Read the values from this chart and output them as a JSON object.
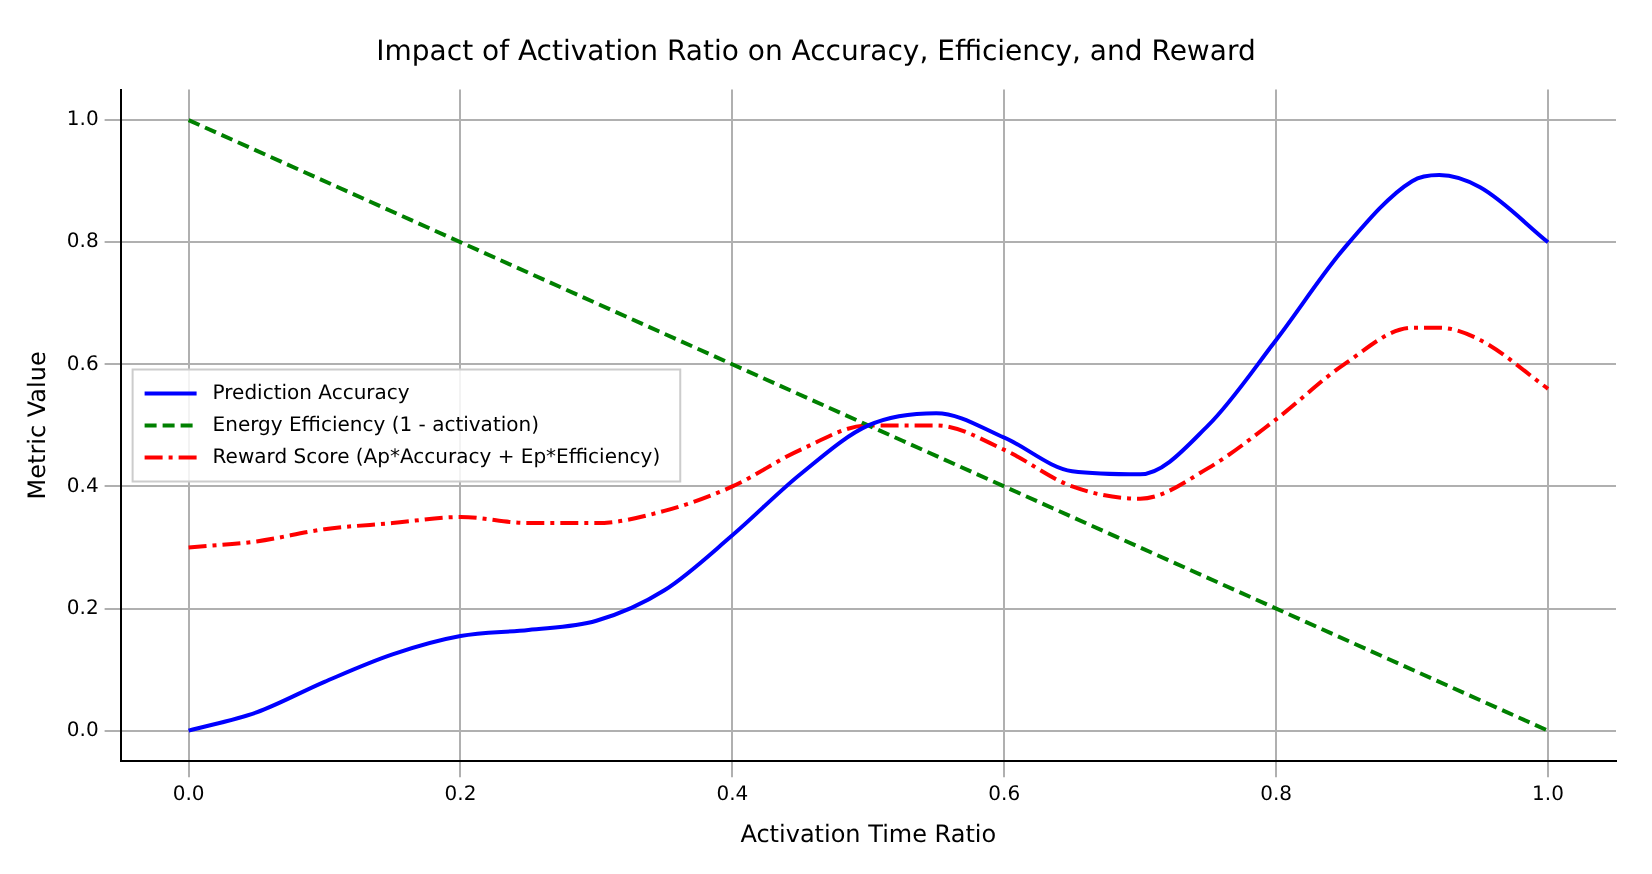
{
  "chart_data": {
    "type": "line",
    "title": "Impact of Activation Ratio on Accuracy, Efficiency, and Reward",
    "xlabel": "Activation Time Ratio",
    "ylabel": "Metric Value",
    "xlim": [
      -0.05,
      1.05
    ],
    "ylim": [
      -0.05,
      1.05
    ],
    "xticks": [
      {
        "value": 0,
        "label": "0.0"
      },
      0.2,
      0.4,
      0.6,
      0.8,
      {
        "value": 1,
        "label": "1.0"
      }
    ],
    "yticks": [
      {
        "value": 0,
        "label": "0.0"
      },
      0.2,
      0.4,
      0.6,
      0.8,
      {
        "value": 1,
        "label": "1.0"
      }
    ],
    "grid": true,
    "legend": "left",
    "marker": "none",
    "series": [
      {
        "name": "Prediction Accuracy",
        "color": "#0000ff",
        "line_style": "solid",
        "x": [
          0,
          0.05,
          0.1,
          0.15,
          0.2,
          0.25,
          0.3,
          0.35,
          0.4,
          0.45,
          0.5,
          0.55,
          0.6,
          0.65,
          0.7,
          0.75,
          0.8,
          0.85,
          0.9,
          0.92,
          0.95,
          1.0
        ],
        "values": [
          0,
          0.03,
          0.08,
          0.125,
          0.155,
          0.165,
          0.18,
          0.23,
          0.32,
          0.42,
          0.5,
          0.52,
          0.48,
          0.425,
          0.42,
          0.5,
          0.64,
          0.79,
          0.9,
          0.91,
          0.89,
          0.8
        ]
      },
      {
        "name": "Energy Efficiency (1 - activation)",
        "color": "#008000",
        "line_style": "dashed",
        "x": [
          0,
          1
        ],
        "values": [
          1,
          0
        ]
      },
      {
        "name": "Reward Score (Ap*Accuracy + Ep*Efficiency)",
        "color": "#ff0000",
        "line_style": "dashdot",
        "x": [
          0,
          0.05,
          0.1,
          0.15,
          0.2,
          0.25,
          0.3,
          0.35,
          0.4,
          0.45,
          0.5,
          0.55,
          0.6,
          0.65,
          0.7,
          0.75,
          0.8,
          0.85,
          0.9,
          0.92,
          0.95,
          1.0
        ],
        "values": [
          0.3,
          0.31,
          0.33,
          0.34,
          0.35,
          0.34,
          0.34,
          0.36,
          0.4,
          0.46,
          0.5,
          0.5,
          0.46,
          0.4,
          0.38,
          0.43,
          0.51,
          0.6,
          0.66,
          0.66,
          0.64,
          0.56
        ]
      }
    ]
  }
}
